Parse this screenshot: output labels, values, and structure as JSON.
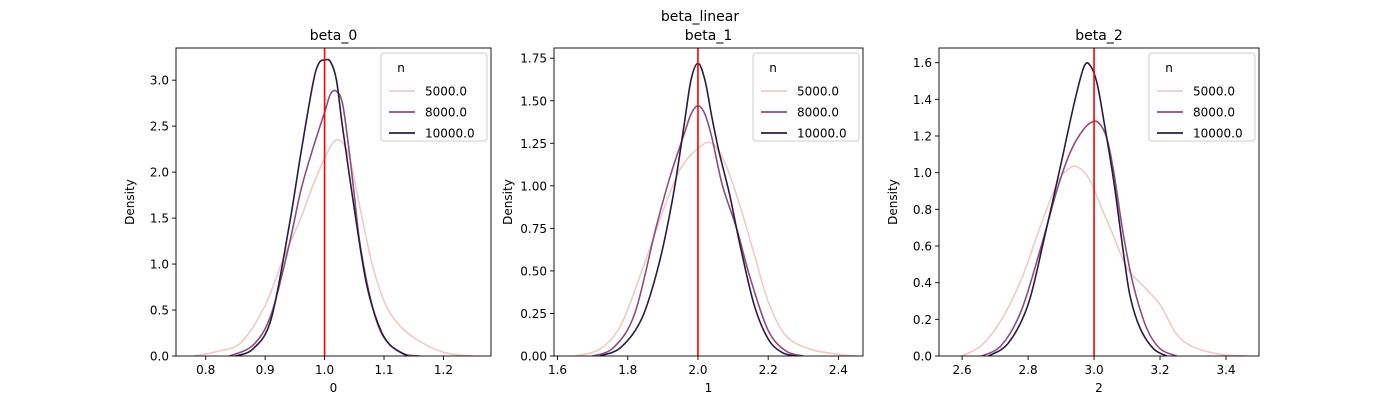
{
  "figure": {
    "title": "beta_linear"
  },
  "legend": {
    "title": "n",
    "colors": [
      "#ebccc6",
      "#8c4f7a",
      "#2a1b3d"
    ]
  },
  "reference_line_color": "#ff0000",
  "chart_data": [
    {
      "type": "line",
      "title": "beta_0",
      "xlabel": "0",
      "ylabel": "Density",
      "xlim": [
        0.75,
        1.28
      ],
      "ylim": [
        0,
        3.35
      ],
      "xticks": [
        0.8,
        0.9,
        1.0,
        1.1,
        1.2
      ],
      "xtick_labels": [
        "0.8",
        "0.9",
        "1.0",
        "1.1",
        "1.2"
      ],
      "yticks": [
        0,
        0.5,
        1.0,
        1.5,
        2.0,
        2.5,
        3.0
      ],
      "ytick_labels": [
        "0.0",
        "0.5",
        "1.0",
        "1.5",
        "2.0",
        "2.5",
        "3.0"
      ],
      "reference_x": 1.0,
      "legend_loc": "upper right",
      "series": [
        {
          "name": "5000.0",
          "x": [
            0.78,
            0.82,
            0.86,
            0.9,
            0.93,
            0.96,
            0.98,
            1.0,
            1.02,
            1.04,
            1.06,
            1.08,
            1.1,
            1.12,
            1.15,
            1.2,
            1.25
          ],
          "y": [
            0.0,
            0.05,
            0.15,
            0.55,
            1.05,
            1.5,
            1.85,
            2.15,
            2.35,
            2.2,
            1.6,
            1.0,
            0.6,
            0.38,
            0.2,
            0.04,
            0.0
          ]
        },
        {
          "name": "8000.0",
          "x": [
            0.84,
            0.88,
            0.91,
            0.94,
            0.96,
            0.98,
            1.0,
            1.01,
            1.02,
            1.03,
            1.04,
            1.05,
            1.06,
            1.08,
            1.1,
            1.13,
            1.16
          ],
          "y": [
            0.0,
            0.12,
            0.45,
            1.2,
            1.8,
            2.25,
            2.65,
            2.85,
            2.88,
            2.75,
            2.3,
            1.75,
            1.2,
            0.55,
            0.2,
            0.03,
            0.0
          ]
        },
        {
          "name": "10000.0",
          "x": [
            0.85,
            0.88,
            0.91,
            0.94,
            0.96,
            0.98,
            0.99,
            1.0,
            1.01,
            1.02,
            1.03,
            1.05,
            1.07,
            1.09,
            1.11,
            1.14
          ],
          "y": [
            0.0,
            0.08,
            0.4,
            1.4,
            2.2,
            2.95,
            3.18,
            3.22,
            3.2,
            3.0,
            2.5,
            1.6,
            0.8,
            0.35,
            0.12,
            0.0
          ]
        }
      ]
    },
    {
      "type": "line",
      "title": "beta_1",
      "xlabel": "1",
      "ylabel": "Density",
      "xlim": [
        1.59,
        2.47
      ],
      "ylim": [
        0,
        1.81
      ],
      "xticks": [
        1.6,
        1.8,
        2.0,
        2.2,
        2.4
      ],
      "xtick_labels": [
        "1.6",
        "1.8",
        "2.0",
        "2.2",
        "2.4"
      ],
      "yticks": [
        0,
        0.25,
        0.5,
        0.75,
        1.0,
        1.25,
        1.5,
        1.75
      ],
      "ytick_labels": [
        "0.00",
        "0.25",
        "0.50",
        "0.75",
        "1.00",
        "1.25",
        "1.50",
        "1.75"
      ],
      "reference_x": 2.0,
      "legend_loc": "upper right",
      "series": [
        {
          "name": "5000.0",
          "x": [
            1.65,
            1.72,
            1.78,
            1.84,
            1.9,
            1.95,
            2.0,
            2.04,
            2.08,
            2.12,
            2.16,
            2.2,
            2.25,
            2.32,
            2.4,
            2.45
          ],
          "y": [
            0.0,
            0.04,
            0.18,
            0.5,
            0.85,
            1.1,
            1.22,
            1.25,
            1.12,
            0.88,
            0.6,
            0.32,
            0.12,
            0.04,
            0.01,
            0.0
          ]
        },
        {
          "name": "8000.0",
          "x": [
            1.7,
            1.76,
            1.82,
            1.88,
            1.92,
            1.96,
            1.98,
            2.0,
            2.02,
            2.04,
            2.07,
            2.11,
            2.15,
            2.2,
            2.25,
            2.3
          ],
          "y": [
            0.0,
            0.05,
            0.25,
            0.75,
            1.05,
            1.3,
            1.42,
            1.47,
            1.42,
            1.28,
            1.0,
            0.75,
            0.45,
            0.15,
            0.03,
            0.0
          ]
        },
        {
          "name": "10000.0",
          "x": [
            1.72,
            1.78,
            1.84,
            1.89,
            1.93,
            1.96,
            1.98,
            2.0,
            2.02,
            2.04,
            2.06,
            2.09,
            2.12,
            2.16,
            2.2,
            2.24,
            2.28
          ],
          "y": [
            0.0,
            0.05,
            0.22,
            0.55,
            0.95,
            1.35,
            1.62,
            1.72,
            1.62,
            1.4,
            1.2,
            0.95,
            0.65,
            0.3,
            0.1,
            0.02,
            0.0
          ]
        }
      ]
    },
    {
      "type": "line",
      "title": "beta_2",
      "xlabel": "2",
      "ylabel": "Density",
      "xlim": [
        2.53,
        3.5
      ],
      "ylim": [
        0,
        1.68
      ],
      "xticks": [
        2.6,
        2.8,
        3.0,
        3.2,
        3.4
      ],
      "xtick_labels": [
        "2.6",
        "2.8",
        "3.0",
        "3.2",
        "3.4"
      ],
      "yticks": [
        0,
        0.2,
        0.4,
        0.6,
        0.8,
        1.0,
        1.2,
        1.4,
        1.6
      ],
      "ytick_labels": [
        "0.0",
        "0.2",
        "0.4",
        "0.6",
        "0.8",
        "1.0",
        "1.2",
        "1.4",
        "1.6"
      ],
      "reference_x": 3.0,
      "legend_loc": "upper right",
      "series": [
        {
          "name": "5000.0",
          "x": [
            2.6,
            2.66,
            2.72,
            2.78,
            2.84,
            2.89,
            2.93,
            2.96,
            2.99,
            3.02,
            3.06,
            3.1,
            3.15,
            3.2,
            3.25,
            3.3,
            3.38,
            3.46
          ],
          "y": [
            0.0,
            0.06,
            0.2,
            0.42,
            0.72,
            0.95,
            1.03,
            1.02,
            0.95,
            0.82,
            0.65,
            0.48,
            0.38,
            0.28,
            0.12,
            0.05,
            0.01,
            0.0
          ]
        },
        {
          "name": "8000.0",
          "x": [
            2.66,
            2.72,
            2.78,
            2.84,
            2.89,
            2.93,
            2.97,
            3.0,
            3.02,
            3.04,
            3.06,
            3.09,
            3.12,
            3.16,
            3.2,
            3.25
          ],
          "y": [
            0.0,
            0.06,
            0.25,
            0.6,
            0.92,
            1.12,
            1.24,
            1.28,
            1.26,
            1.18,
            1.0,
            0.65,
            0.38,
            0.15,
            0.04,
            0.0
          ]
        },
        {
          "name": "10000.0",
          "x": [
            2.68,
            2.74,
            2.8,
            2.85,
            2.9,
            2.94,
            2.97,
            2.99,
            3.01,
            3.03,
            3.06,
            3.09,
            3.11,
            3.14,
            3.18,
            3.22
          ],
          "y": [
            0.0,
            0.07,
            0.28,
            0.65,
            1.05,
            1.38,
            1.58,
            1.58,
            1.48,
            1.28,
            0.95,
            0.55,
            0.32,
            0.15,
            0.04,
            0.0
          ]
        }
      ]
    }
  ]
}
